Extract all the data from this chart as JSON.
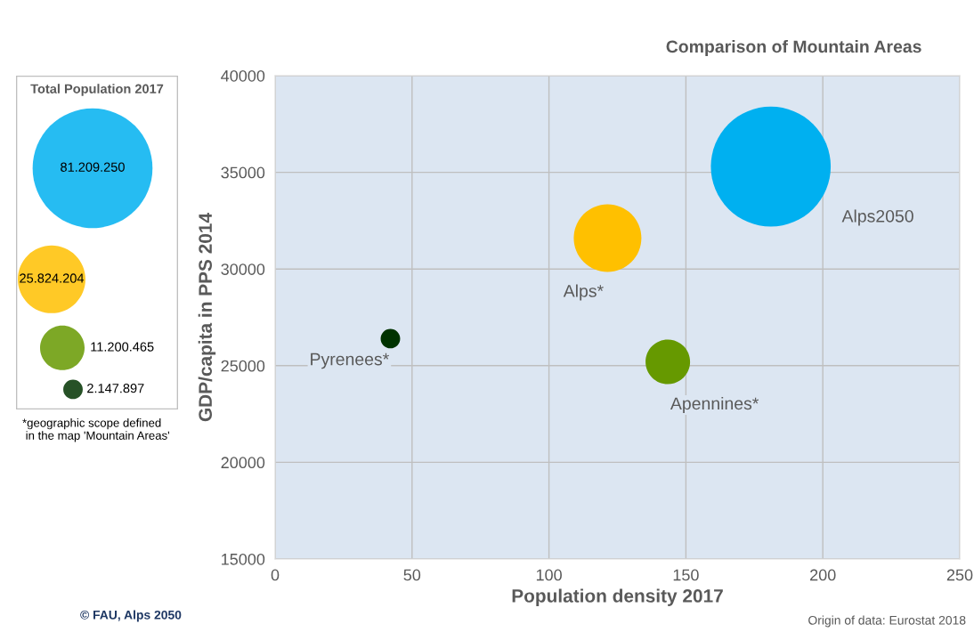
{
  "chart_data": {
    "type": "bubble",
    "title": "Comparison of Mountain Areas",
    "xlabel": "Population density 2017",
    "ylabel": "GDP/capita in PPS 2014",
    "legend_title": "Total Population 2017",
    "series": [
      {
        "name": "Alps2050",
        "color": "#00b0f0",
        "x": [
          181
        ],
        "values": [
          35300
        ],
        "sizes": [
          81209250
        ]
      },
      {
        "name": "Alps*",
        "color": "#ffc000",
        "x": [
          121.4
        ],
        "values": [
          31600
        ],
        "sizes": [
          25824204
        ]
      },
      {
        "name": "Apennines*",
        "color": "#669900",
        "x": [
          143.4
        ],
        "values": [
          25200
        ],
        "sizes": [
          11200465
        ]
      },
      {
        "name": "Pyrenees*",
        "color": "#003300",
        "x": [
          42.1
        ],
        "values": [
          26400
        ],
        "sizes": [
          2147897
        ]
      }
    ],
    "size_legend": [
      {
        "value": 81209250,
        "label": "81.209.250"
      },
      {
        "value": 25824204,
        "label": "25.824.204"
      },
      {
        "value": 11200465,
        "label": "11.200.465"
      },
      {
        "value": 2147897,
        "label": "2.147.897"
      }
    ],
    "xlim": [
      0,
      250
    ],
    "xticks": [
      0,
      50,
      100,
      150,
      200,
      250
    ],
    "ylim": [
      15000,
      40000
    ],
    "yticks": [
      15000,
      20000,
      25000,
      30000,
      35000,
      40000
    ],
    "grid": true,
    "legend": "left",
    "annotations": [
      "*geographic scope defined\n in the map 'Mountain Areas'",
      "© FAU, Alps 2050",
      "Origin of data: Eurostat 2018"
    ]
  }
}
